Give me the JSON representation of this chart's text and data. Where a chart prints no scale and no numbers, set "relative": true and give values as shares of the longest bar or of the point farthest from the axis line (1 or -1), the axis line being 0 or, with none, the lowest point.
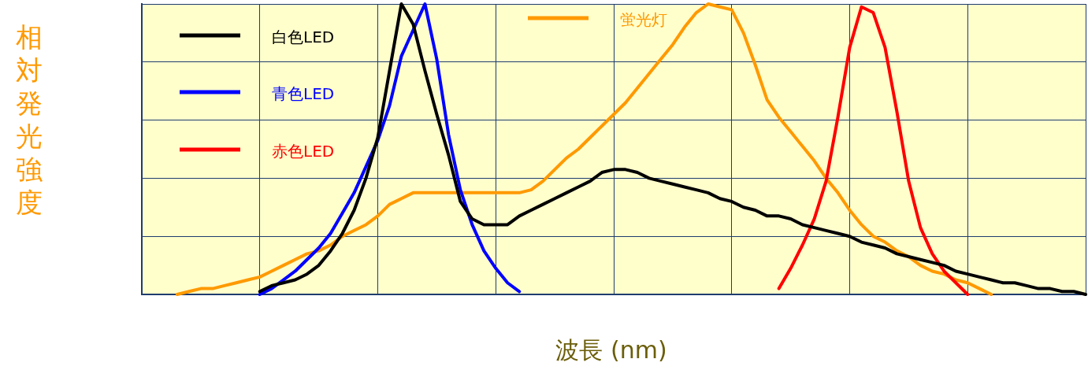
{
  "chart_data": {
    "type": "line",
    "relative": true,
    "xlabel": "波長 (nm)",
    "ylabel": "相対発光強度",
    "tick_labels": false,
    "grid": true,
    "legend": "top left",
    "marker": "none",
    "line_style": "solid",
    "categories": [
      null,
      null,
      null,
      null,
      null,
      null,
      null,
      null,
      null,
      null,
      null,
      null,
      null,
      null,
      null,
      null,
      null,
      null,
      null,
      null,
      null,
      null,
      null,
      null,
      null,
      null,
      null,
      null,
      null,
      null,
      null,
      null,
      null,
      null,
      null,
      null,
      null,
      null,
      null,
      null,
      null,
      null,
      null,
      null,
      null,
      null,
      null,
      null,
      null,
      null,
      null,
      null,
      null,
      null,
      null,
      null,
      null,
      null,
      null,
      null,
      null,
      null,
      null,
      null,
      null,
      null,
      null,
      null,
      null,
      null,
      null,
      null,
      null,
      null,
      null,
      null,
      null,
      null,
      null,
      null,
      null
    ],
    "series": [
      {
        "name": "白色LED",
        "color": "#000000",
        "values": [
          null,
          null,
          null,
          null,
          null,
          null,
          null,
          null,
          null,
          null,
          0.01,
          0.03,
          0.04,
          0.05,
          0.07,
          0.1,
          0.15,
          0.21,
          0.29,
          0.4,
          0.54,
          0.77,
          1.0,
          0.93,
          0.77,
          0.62,
          0.48,
          0.32,
          0.26,
          0.24,
          0.24,
          0.24,
          0.27,
          0.29,
          0.31,
          0.33,
          0.35,
          0.37,
          0.39,
          0.42,
          0.43,
          0.43,
          0.42,
          0.4,
          0.39,
          0.38,
          0.37,
          0.36,
          0.35,
          0.33,
          0.32,
          0.3,
          0.29,
          0.27,
          0.27,
          0.26,
          0.24,
          0.23,
          0.22,
          0.21,
          0.2,
          0.18,
          0.17,
          0.16,
          0.14,
          0.13,
          0.12,
          0.11,
          0.1,
          0.08,
          0.07,
          0.06,
          0.05,
          0.04,
          0.04,
          0.03,
          0.02,
          0.02,
          0.01,
          0.01,
          0.0
        ]
      },
      {
        "name": "青色LED",
        "color": "#0000ff",
        "values": [
          null,
          null,
          null,
          null,
          null,
          null,
          null,
          null,
          null,
          null,
          0.0,
          0.02,
          0.05,
          0.08,
          0.12,
          0.16,
          0.21,
          0.28,
          0.35,
          0.44,
          0.53,
          0.65,
          0.82,
          0.91,
          1.0,
          0.81,
          0.55,
          0.36,
          0.24,
          0.15,
          0.09,
          0.04,
          0.01,
          null,
          null,
          null,
          null,
          null,
          null,
          null,
          null,
          null,
          null,
          null,
          null,
          null,
          null,
          null,
          null,
          null,
          null,
          null,
          null,
          null,
          null,
          null,
          null,
          null,
          null,
          null,
          null,
          null,
          null,
          null,
          null,
          null,
          null,
          null,
          null,
          null,
          null,
          null,
          null,
          null,
          null,
          null,
          null,
          null,
          null,
          null,
          null
        ]
      },
      {
        "name": "赤色LED",
        "color": "#ff0000",
        "values": [
          null,
          null,
          null,
          null,
          null,
          null,
          null,
          null,
          null,
          null,
          null,
          null,
          null,
          null,
          null,
          null,
          null,
          null,
          null,
          null,
          null,
          null,
          null,
          null,
          null,
          null,
          null,
          null,
          null,
          null,
          null,
          null,
          null,
          null,
          null,
          null,
          null,
          null,
          null,
          null,
          null,
          null,
          null,
          null,
          null,
          null,
          null,
          null,
          null,
          null,
          null,
          null,
          null,
          null,
          0.02,
          0.09,
          0.17,
          0.26,
          0.39,
          0.61,
          0.85,
          0.99,
          0.97,
          0.85,
          0.63,
          0.39,
          0.23,
          0.14,
          0.08,
          0.04,
          0.0,
          null,
          null,
          null,
          null,
          null,
          null,
          null,
          null,
          null,
          null
        ]
      },
      {
        "name": "蛍光灯",
        "color": "#ff9900",
        "values": [
          null,
          null,
          null,
          0.0,
          0.01,
          0.02,
          0.02,
          0.03,
          0.04,
          0.05,
          0.06,
          0.08,
          0.1,
          0.12,
          0.14,
          0.15,
          0.17,
          0.2,
          0.22,
          0.24,
          0.27,
          0.31,
          0.33,
          0.35,
          0.35,
          0.35,
          0.35,
          0.35,
          0.35,
          0.35,
          0.35,
          0.35,
          0.35,
          0.36,
          0.39,
          0.43,
          0.47,
          0.5,
          0.54,
          0.58,
          0.62,
          0.66,
          0.71,
          0.76,
          0.81,
          0.86,
          0.92,
          0.97,
          1.0,
          0.99,
          0.98,
          0.9,
          0.79,
          0.67,
          0.61,
          0.56,
          0.51,
          0.46,
          0.4,
          0.35,
          0.29,
          0.24,
          0.2,
          0.18,
          0.15,
          0.13,
          0.1,
          0.08,
          0.07,
          0.05,
          0.04,
          0.02,
          0.0,
          null,
          null,
          null,
          null,
          null,
          null,
          null,
          null
        ]
      }
    ]
  }
}
